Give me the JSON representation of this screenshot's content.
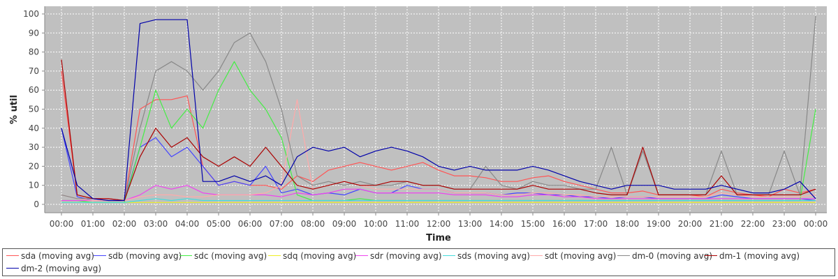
{
  "chart_data": {
    "type": "line",
    "title": "",
    "xlabel": "Time",
    "ylabel": "% util",
    "ylim": [
      0,
      100
    ],
    "xlim": [
      "00:00",
      "24:00"
    ],
    "xtick_labels": [
      "00:00",
      "01:00",
      "02:00",
      "03:00",
      "04:00",
      "05:00",
      "06:00",
      "07:00",
      "08:00",
      "09:00",
      "10:00",
      "11:00",
      "12:00",
      "13:00",
      "14:00",
      "15:00",
      "16:00",
      "17:00",
      "18:00",
      "19:00",
      "20:00",
      "21:00",
      "22:00",
      "23:00",
      "00:00"
    ],
    "ytick_labels": [
      "0",
      "10",
      "20",
      "30",
      "40",
      "50",
      "60",
      "70",
      "80",
      "90",
      "100"
    ],
    "grid": true,
    "legend_position": "bottom",
    "x": [
      "00:00",
      "00:30",
      "01:00",
      "01:30",
      "02:00",
      "02:30",
      "03:00",
      "03:30",
      "04:00",
      "04:30",
      "05:00",
      "05:30",
      "06:00",
      "06:30",
      "07:00",
      "07:30",
      "08:00",
      "08:30",
      "09:00",
      "09:30",
      "10:00",
      "10:30",
      "11:00",
      "11:30",
      "12:00",
      "12:30",
      "13:00",
      "13:30",
      "14:00",
      "14:30",
      "15:00",
      "15:30",
      "16:00",
      "16:30",
      "17:00",
      "17:30",
      "18:00",
      "18:30",
      "19:00",
      "19:30",
      "20:00",
      "20:30",
      "21:00",
      "21:30",
      "22:00",
      "22:30",
      "23:00",
      "23:30",
      "24:00"
    ],
    "series": [
      {
        "name": "sda (moving avg)",
        "color": "#ff5555",
        "values": [
          70,
          5,
          3,
          3,
          2,
          50,
          55,
          55,
          57,
          20,
          10,
          12,
          10,
          10,
          8,
          15,
          12,
          18,
          20,
          22,
          20,
          18,
          20,
          22,
          18,
          15,
          15,
          14,
          12,
          12,
          14,
          15,
          12,
          10,
          8,
          6,
          6,
          7,
          5,
          5,
          5,
          4,
          8,
          6,
          5,
          4,
          8,
          6,
          8
        ]
      },
      {
        "name": "sdb (moving avg)",
        "color": "#4444ff",
        "values": [
          40,
          4,
          2,
          2,
          2,
          30,
          35,
          25,
          30,
          20,
          10,
          12,
          10,
          20,
          6,
          8,
          5,
          6,
          5,
          8,
          6,
          6,
          10,
          8,
          8,
          6,
          6,
          6,
          5,
          6,
          6,
          5,
          5,
          4,
          4,
          3,
          4,
          4,
          3,
          3,
          3,
          3,
          5,
          4,
          3,
          3,
          3,
          3,
          2
        ]
      },
      {
        "name": "sdc (moving avg)",
        "color": "#44ee44",
        "values": [
          2,
          2,
          1,
          1,
          1,
          30,
          60,
          40,
          50,
          40,
          60,
          75,
          60,
          50,
          35,
          5,
          2,
          2,
          2,
          3,
          2,
          2,
          2,
          2,
          2,
          2,
          2,
          2,
          2,
          2,
          2,
          2,
          2,
          2,
          2,
          2,
          2,
          2,
          2,
          2,
          2,
          2,
          2,
          2,
          2,
          2,
          2,
          2,
          50
        ]
      },
      {
        "name": "sdq (moving avg)",
        "color": "#eeee22",
        "values": [
          1,
          1,
          1,
          1,
          1,
          1,
          1,
          1,
          1,
          1,
          1,
          1,
          1,
          1,
          1,
          1,
          1,
          1,
          1,
          1,
          1,
          1,
          1,
          1,
          1,
          1,
          1,
          1,
          1,
          1,
          1,
          1,
          1,
          1,
          1,
          1,
          1,
          1,
          1,
          1,
          1,
          1,
          1,
          1,
          1,
          1,
          1,
          1,
          1
        ]
      },
      {
        "name": "sdr (moving avg)",
        "color": "#ee44ee",
        "values": [
          2,
          2,
          2,
          2,
          2,
          5,
          10,
          8,
          10,
          6,
          5,
          5,
          5,
          5,
          4,
          6,
          5,
          6,
          8,
          8,
          6,
          6,
          6,
          6,
          6,
          5,
          5,
          5,
          4,
          4,
          5,
          5,
          4,
          4,
          3,
          3,
          3,
          3,
          3,
          3,
          3,
          3,
          3,
          3,
          3,
          3,
          3,
          3,
          3
        ]
      },
      {
        "name": "sds (moving avg)",
        "color": "#44dddd",
        "values": [
          1,
          1,
          1,
          1,
          1,
          2,
          3,
          2,
          3,
          2,
          2,
          2,
          2,
          2,
          2,
          2,
          2,
          2,
          2,
          2,
          2,
          2,
          2,
          2,
          2,
          2,
          2,
          2,
          2,
          2,
          2,
          2,
          2,
          2,
          2,
          2,
          2,
          2,
          2,
          2,
          2,
          2,
          2,
          2,
          2,
          2,
          2,
          2,
          2
        ]
      },
      {
        "name": "sdt (moving avg)",
        "color": "#ffaaaa",
        "values": [
          5,
          3,
          2,
          2,
          2,
          4,
          5,
          5,
          4,
          4,
          5,
          5,
          5,
          6,
          10,
          55,
          8,
          10,
          12,
          10,
          8,
          8,
          8,
          8,
          8,
          6,
          6,
          6,
          5,
          5,
          6,
          6,
          5,
          5,
          4,
          4,
          4,
          4,
          4,
          4,
          4,
          4,
          6,
          5,
          4,
          4,
          4,
          4,
          5
        ]
      },
      {
        "name": "dm-0 (moving avg)",
        "color": "#888888",
        "values": [
          5,
          3,
          3,
          2,
          2,
          40,
          70,
          75,
          70,
          60,
          70,
          85,
          90,
          75,
          50,
          15,
          10,
          12,
          10,
          12,
          10,
          10,
          12,
          10,
          10,
          8,
          8,
          20,
          10,
          8,
          12,
          10,
          10,
          8,
          8,
          30,
          5,
          28,
          5,
          5,
          5,
          5,
          28,
          5,
          5,
          5,
          28,
          5,
          99
        ]
      },
      {
        "name": "dm-1 (moving avg)",
        "color": "#aa0000",
        "values": [
          76,
          5,
          3,
          3,
          2,
          25,
          40,
          30,
          35,
          25,
          20,
          25,
          20,
          30,
          20,
          10,
          8,
          10,
          12,
          10,
          10,
          12,
          12,
          10,
          10,
          8,
          8,
          8,
          8,
          8,
          10,
          8,
          8,
          8,
          6,
          5,
          5,
          30,
          5,
          5,
          5,
          5,
          15,
          5,
          5,
          5,
          5,
          5,
          8
        ]
      },
      {
        "name": "dm-2 (moving avg)",
        "color": "#0000aa",
        "values": [
          40,
          10,
          3,
          2,
          2,
          95,
          97,
          97,
          97,
          12,
          12,
          15,
          12,
          15,
          10,
          25,
          30,
          28,
          30,
          25,
          28,
          30,
          28,
          25,
          20,
          18,
          20,
          18,
          18,
          18,
          20,
          18,
          15,
          12,
          10,
          8,
          10,
          10,
          10,
          8,
          8,
          8,
          10,
          8,
          6,
          6,
          8,
          12,
          3
        ]
      }
    ]
  }
}
